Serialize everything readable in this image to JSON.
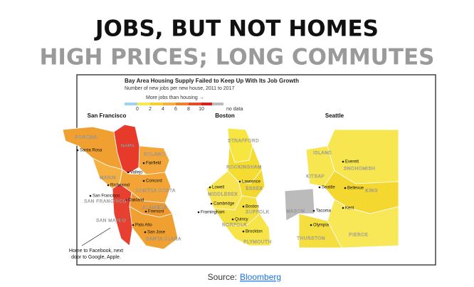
{
  "header": {
    "title": "JOBS, BUT NOT HOMES",
    "subtitle": "HIGH PRICES; LONG COMMUTES"
  },
  "figure": {
    "title": "Bay Area Housing Supply Failed to Keep Up With Its Job Growth",
    "subtitle": "Number of new jobs per new house, 2011 to 2017",
    "legend": {
      "caption": "More jobs than housing →",
      "ticks": [
        "0",
        "2",
        "4",
        "6",
        "8",
        "10"
      ],
      "no_data": "no data"
    },
    "maps": [
      {
        "name": "San Francisco",
        "labels": [
          "SONOMA",
          "Santa Rosa",
          "NAPA",
          "SOLANO",
          "Fairfield",
          "Vallejo",
          "MARIN",
          "Concord",
          "Richmond",
          "CONTRA COSTA",
          "San Francisco",
          "Oakland",
          "SAN FRANCISCO",
          "ALAMEDA",
          "Fremont",
          "SAN MATEO",
          "Palo Alto",
          "San Jose",
          "SANTA CLARA"
        ],
        "annotation": [
          "Home to Facebook, next",
          "door to Google, Apple."
        ]
      },
      {
        "name": "Boston",
        "labels": [
          "STRAFFORD",
          "ROCKINGHAM",
          "Lawrence",
          "ESSEX",
          "Lowell",
          "MIDDLESEX",
          "Cambridge",
          "Boston",
          "Framingham",
          "SUFFOLK",
          "Quincy",
          "NORFOLK",
          "Brockton",
          "PLYMOUTH"
        ]
      },
      {
        "name": "Seattle",
        "labels": [
          "ISLAND",
          "Everett",
          "SNOHOMISH",
          "KITSAP",
          "Seattle",
          "Bellevue",
          "KING",
          "MASON",
          "Tacoma",
          "Kent",
          "Olympia",
          "THURSTON",
          "PIERCE"
        ]
      }
    ]
  },
  "source": {
    "prefix": "Source:",
    "link": "Bloomberg"
  }
}
